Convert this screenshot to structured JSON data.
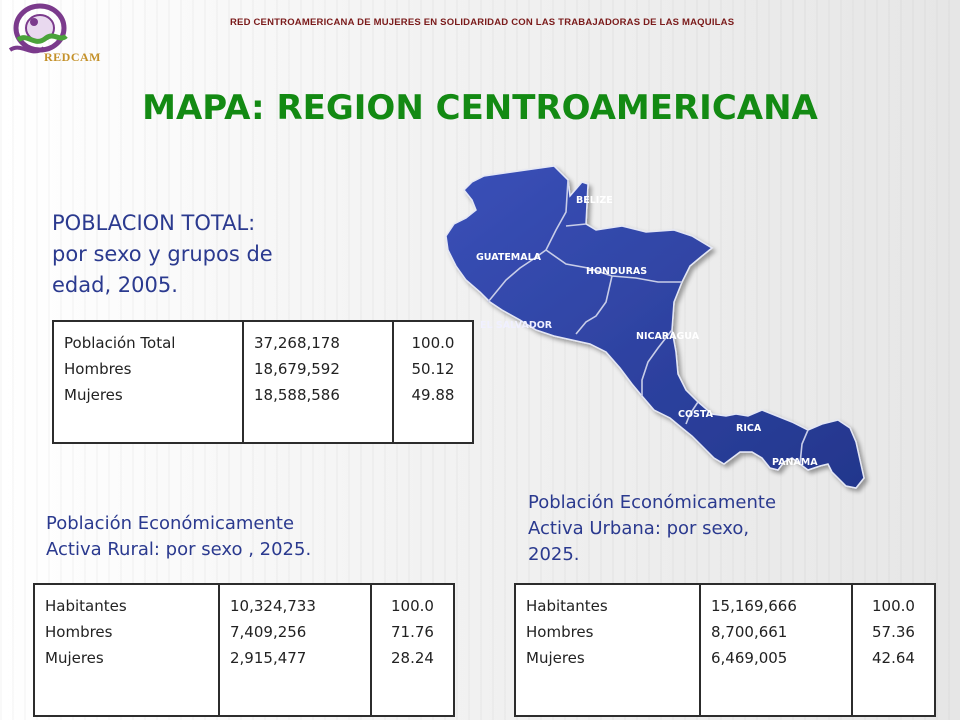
{
  "header": {
    "organization": "RED CENTROAMERICANA DE MUJERES EN SOLIDARIDAD CON LAS TRABAJADORAS DE LAS MAQUILAS",
    "logo_text": "REDCAM"
  },
  "title": "MAPA:  REGION CENTROAMERICANA",
  "map": {
    "labels": {
      "belize": "BELIZE",
      "guatemala": "GUATEMALA",
      "honduras": "HONDURAS",
      "el_salvador": "EL SALVADOR",
      "nicaragua": "NICARAGUA",
      "costa_rica_1": "COSTA",
      "costa_rica_2": "RICA",
      "panama": "PANAMA"
    },
    "colors": {
      "land": "#2b3f9e",
      "border": "#c8cde8"
    }
  },
  "sections": {
    "total": {
      "heading_lines": [
        "POBLACION TOTAL:",
        "por sexo y grupos de",
        "edad, 2005."
      ],
      "table": {
        "labels": [
          "Población Total",
          "Hombres",
          "Mujeres"
        ],
        "values": [
          "37,268,178",
          "18,679,592",
          "18,588,586"
        ],
        "percents": [
          "100.0",
          "50.12",
          "49.88"
        ]
      }
    },
    "rural": {
      "heading_lines": [
        "Población Económicamente",
        "Activa Rural: por sexo , 2025."
      ],
      "table": {
        "labels": [
          "Habitantes",
          "Hombres",
          "Mujeres"
        ],
        "values": [
          "10,324,733",
          "7,409,256",
          "2,915,477"
        ],
        "percents": [
          "100.0",
          "71.76",
          "28.24"
        ]
      }
    },
    "urban": {
      "heading_lines": [
        "Población Económicamente",
        "Activa Urbana: por sexo,",
        "2025."
      ],
      "table": {
        "labels": [
          "Habitantes",
          "Hombres",
          "Mujeres"
        ],
        "values": [
          "15,169,666",
          "8,700,661",
          "6,469,005"
        ],
        "percents": [
          "100.0",
          "57.36",
          "42.64"
        ]
      }
    }
  }
}
